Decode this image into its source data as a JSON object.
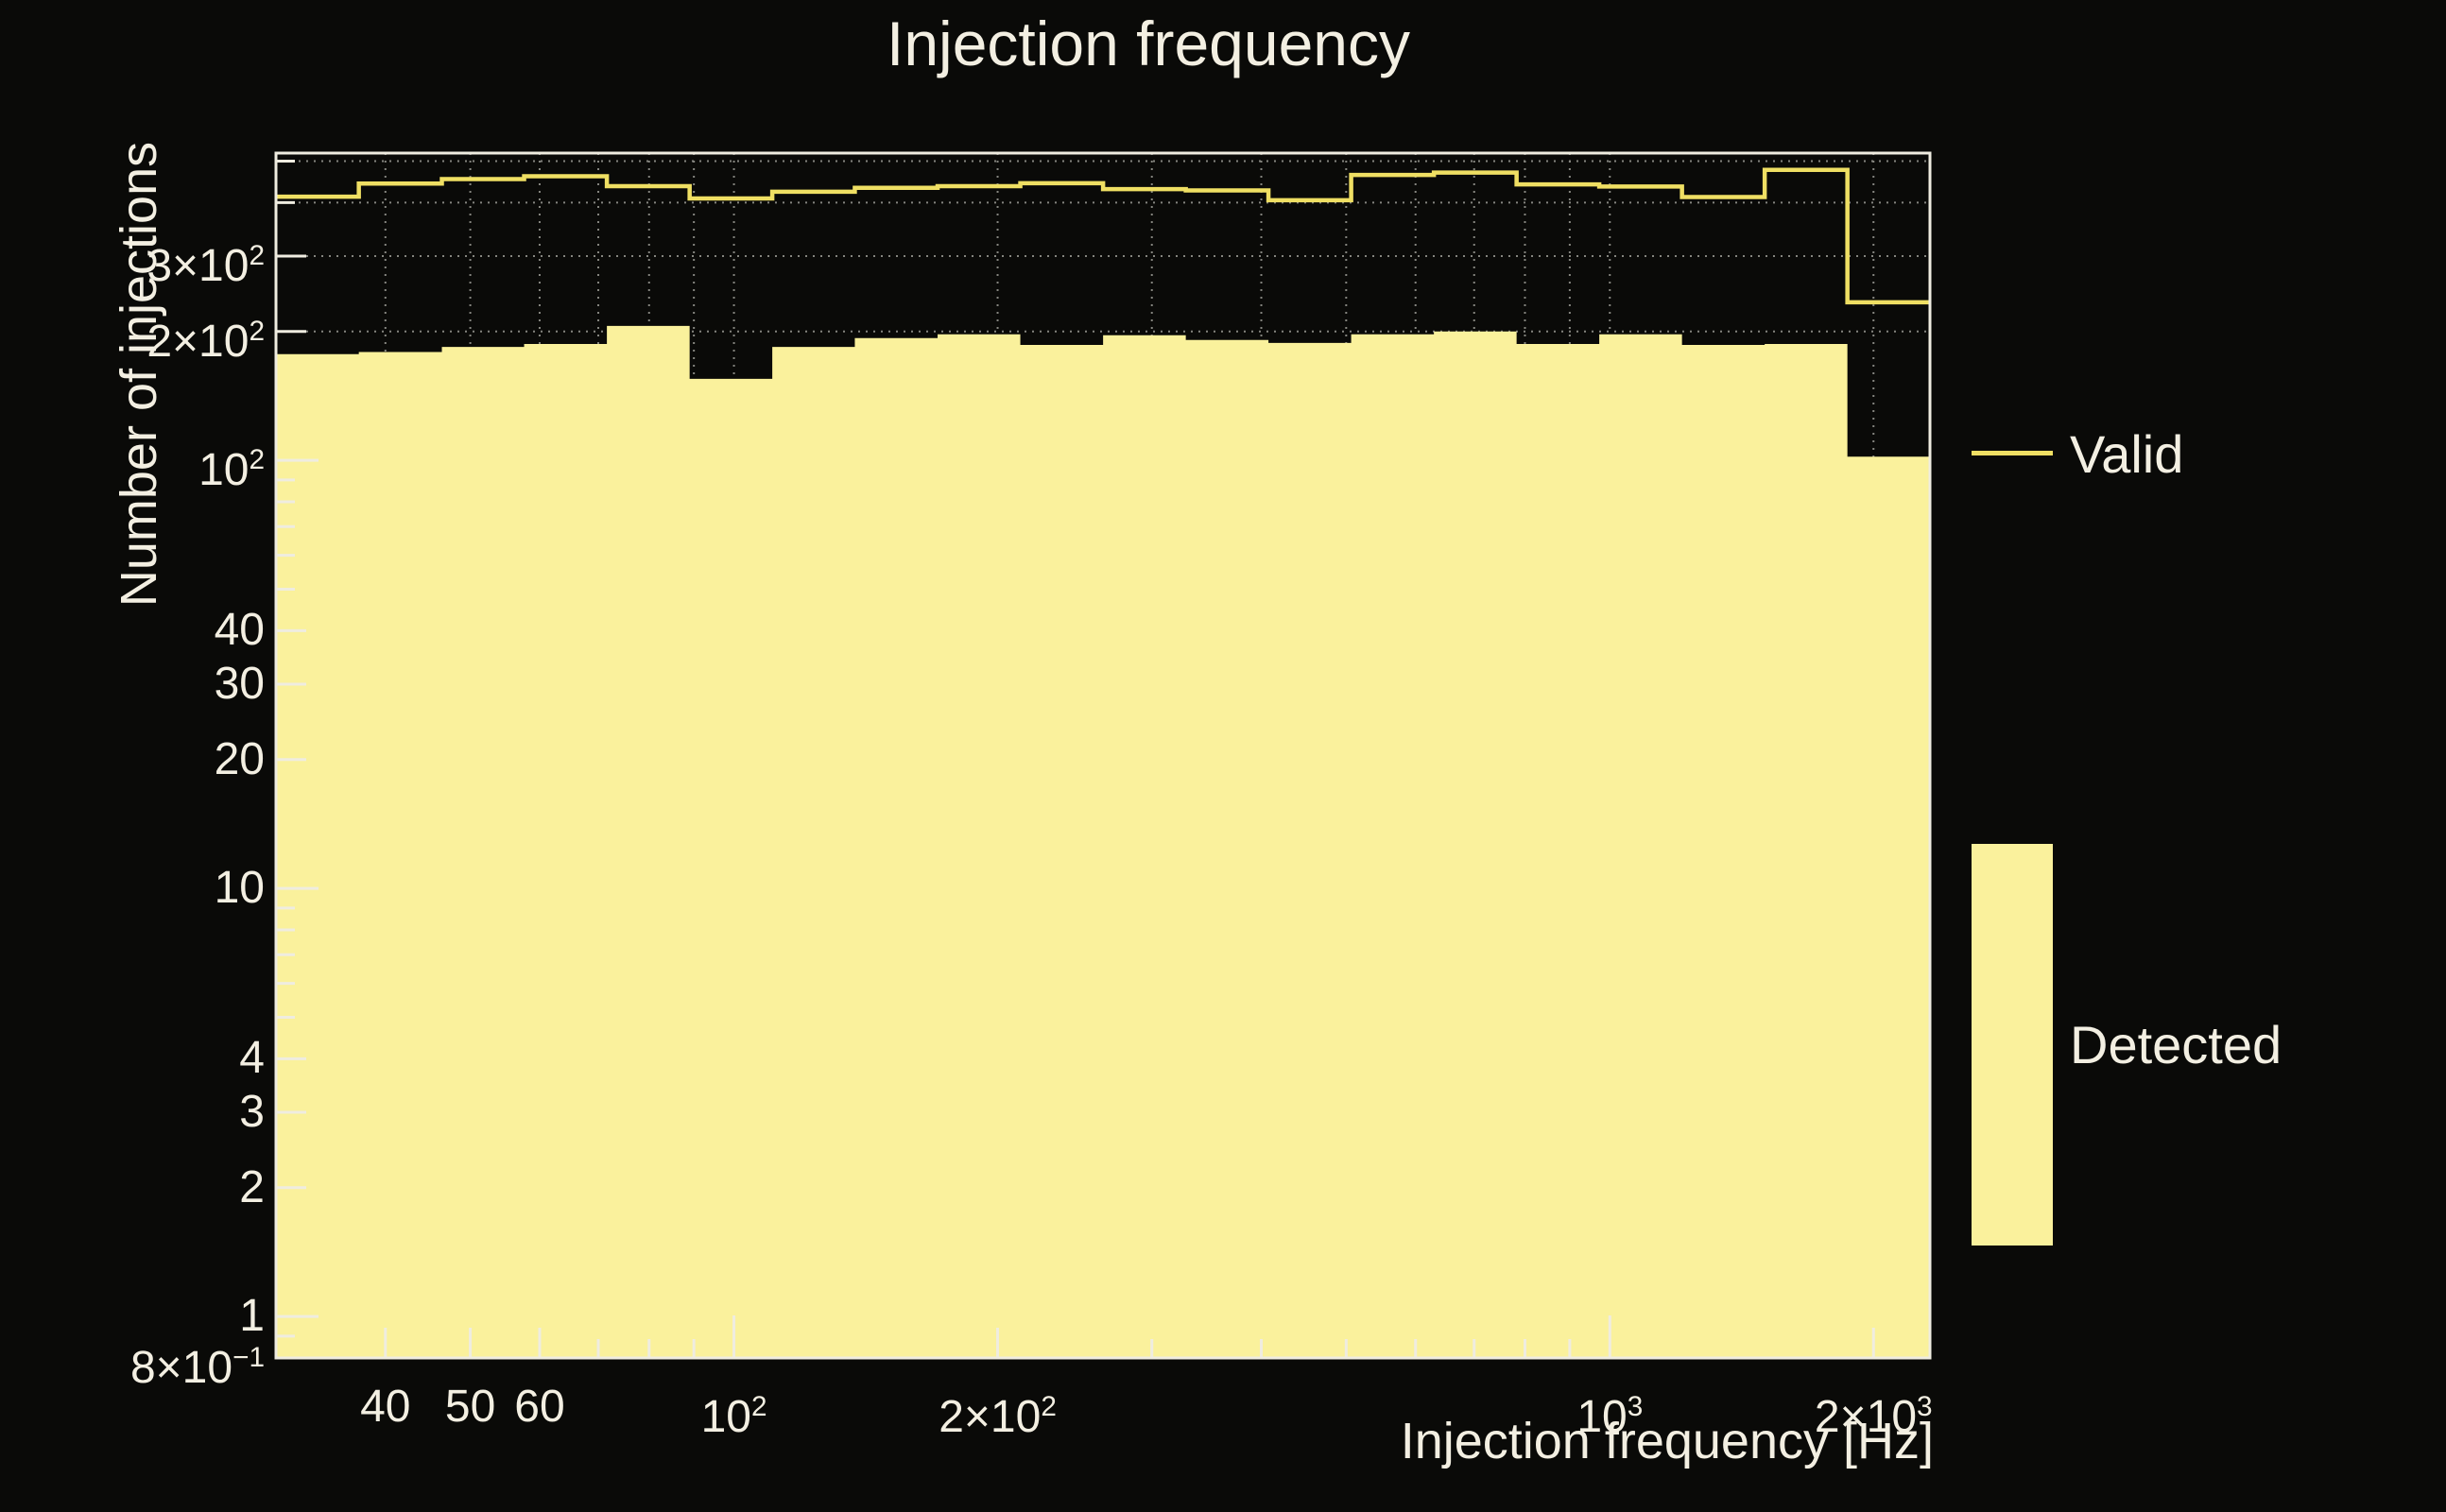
{
  "title": "Injection frequency",
  "axes": {
    "x_label": "Injection frequency [Hz]",
    "y_label": "Number of injections"
  },
  "legend": {
    "valid": "Valid",
    "detected": "Detected"
  },
  "colors": {
    "background": "#0a0a08",
    "text": "#f3efe2",
    "axis": "#efece0",
    "grid": "#85857f",
    "fill": "#faf19c",
    "line": "#efdf63"
  },
  "chart_data": {
    "type": "bar",
    "subtype": "log-log step histogram",
    "x_scale": "log",
    "y_scale": "log",
    "x_range": [
      30,
      2320
    ],
    "y_range": [
      0.8,
      522
    ],
    "grid": "dotted",
    "legend_position": "right",
    "bin_edges_hz": [
      30,
      37.3,
      46.4,
      57.6,
      71.6,
      89.0,
      110.6,
      137.4,
      170.8,
      212.3,
      263.9,
      328.0,
      407.6,
      506.6,
      629.7,
      782.6,
      972.6,
      1208.9,
      1502.5,
      1867.4,
      2320
    ],
    "series": [
      {
        "name": "Valid",
        "style": "line",
        "values": [
          413,
          443,
          454,
          461,
          437,
          409,
          424,
          433,
          437,
          444,
          430,
          427,
          405,
          464,
          470,
          441,
          436,
          412,
          477,
          234
        ]
      },
      {
        "name": "Detected",
        "style": "fill",
        "values": [
          177,
          179,
          184,
          187,
          206,
          155,
          184,
          193,
          197,
          186,
          196,
          191,
          188,
          197,
          200,
          187,
          197,
          186,
          187,
          102
        ]
      }
    ],
    "x_ticks": [
      {
        "v": 40,
        "base": "40"
      },
      {
        "v": 50,
        "base": "50"
      },
      {
        "v": 60,
        "base": "60"
      },
      {
        "v": 70
      },
      {
        "v": 80
      },
      {
        "v": 90
      },
      {
        "v": 100,
        "base": "10",
        "sup": "2"
      },
      {
        "v": 200,
        "base": "2×10",
        "sup": "2"
      },
      {
        "v": 300
      },
      {
        "v": 400
      },
      {
        "v": 500
      },
      {
        "v": 600
      },
      {
        "v": 700
      },
      {
        "v": 800
      },
      {
        "v": 900
      },
      {
        "v": 1000,
        "base": "10",
        "sup": "3"
      },
      {
        "v": 2000,
        "base": "2×10",
        "sup": "3"
      }
    ],
    "y_ticks": [
      {
        "v": 500
      },
      {
        "v": 400
      },
      {
        "v": 300,
        "base": "3×10",
        "sup": "2"
      },
      {
        "v": 200,
        "base": "2×10",
        "sup": "2"
      },
      {
        "v": 100,
        "base": "10",
        "sup": "2"
      },
      {
        "v": 90
      },
      {
        "v": 80
      },
      {
        "v": 70
      },
      {
        "v": 60
      },
      {
        "v": 50
      },
      {
        "v": 40,
        "base": "40"
      },
      {
        "v": 30,
        "base": "30"
      },
      {
        "v": 20,
        "base": "20"
      },
      {
        "v": 10,
        "base": "10"
      },
      {
        "v": 9
      },
      {
        "v": 8
      },
      {
        "v": 7
      },
      {
        "v": 6
      },
      {
        "v": 5
      },
      {
        "v": 4,
        "base": "4"
      },
      {
        "v": 3,
        "base": "3"
      },
      {
        "v": 2,
        "base": "2"
      },
      {
        "v": 1,
        "base": "1"
      },
      {
        "v": 0.9
      },
      {
        "v": 0.8,
        "base": "8×10",
        "sup": "−1"
      }
    ]
  }
}
